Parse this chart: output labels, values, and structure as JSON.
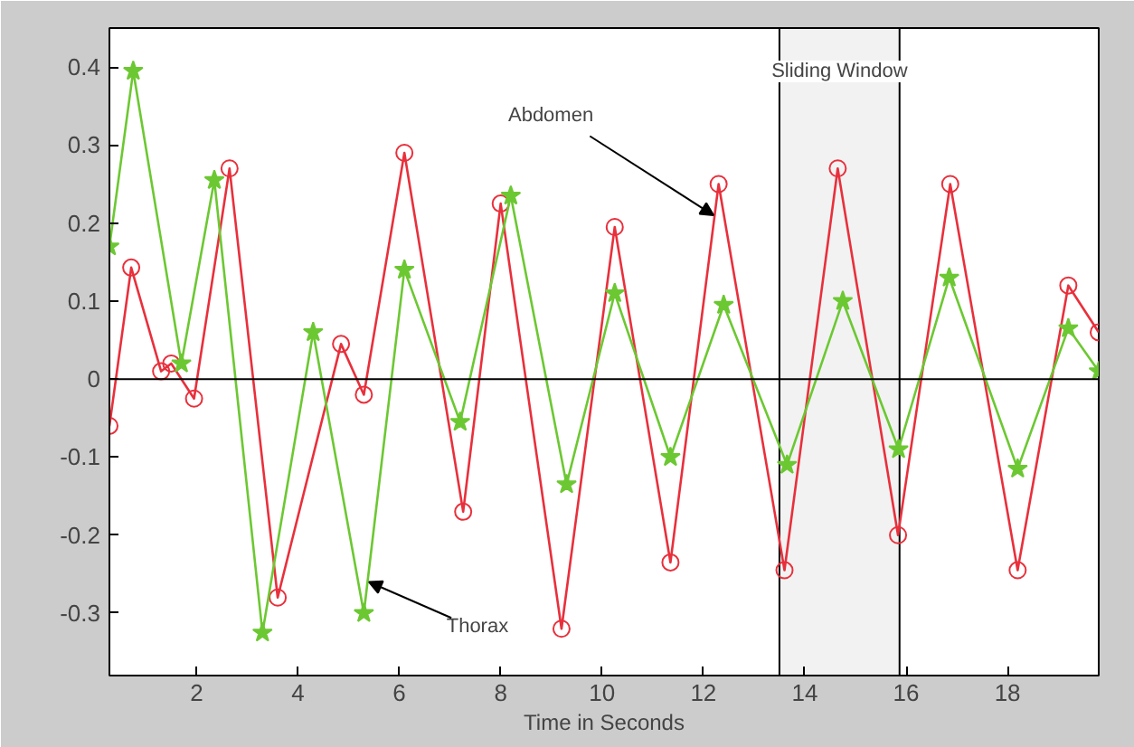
{
  "chart_data": {
    "type": "line",
    "xlabel": "Time in Seconds",
    "x": [
      0.28,
      0.71,
      1.3,
      1.5,
      1.95,
      2.65,
      3.6,
      4.85,
      5.3,
      6.1,
      7.26,
      8.0,
      9.2,
      10.25,
      11.35,
      12.3,
      13.6,
      14.65,
      15.84,
      16.87,
      18.2,
      19.2,
      19.8
    ],
    "series": [
      {
        "color": "#e8303c",
        "marker": "circle",
        "values": [
          -0.06,
          0.143,
          0.01,
          0.02,
          -0.025,
          0.27,
          -0.28,
          0.045,
          -0.02,
          0.29,
          -0.17,
          0.225,
          -0.32,
          0.195,
          -0.235,
          0.25,
          -0.245,
          0.27,
          -0.2,
          0.25,
          -0.245,
          0.12,
          0.06
        ]
      },
      {
        "color": "#6cc832",
        "marker": "star",
        "x": [
          0.28,
          0.75,
          1.7,
          2.35,
          3.3,
          4.3,
          5.3,
          6.1,
          7.2,
          8.2,
          9.3,
          10.25,
          11.35,
          12.4,
          13.65,
          14.75,
          15.85,
          16.85,
          18.2,
          19.2,
          19.8
        ],
        "values": [
          0.17,
          0.395,
          0.02,
          0.255,
          -0.325,
          0.06,
          -0.3,
          0.14,
          -0.055,
          0.235,
          -0.135,
          0.11,
          -0.1,
          0.095,
          -0.11,
          0.1,
          -0.09,
          0.13,
          -0.115,
          0.065,
          0.01
        ]
      }
    ],
    "xlim": [
      0.28,
      19.8
    ],
    "ylim": [
      -0.38,
      0.45
    ],
    "xticks": [
      2,
      4,
      6,
      8,
      10,
      12,
      14,
      16,
      18
    ],
    "yticks": [
      -0.3,
      -0.2,
      -0.1,
      0,
      0.1,
      0.2,
      0.3,
      0.4
    ],
    "ref_lines": [
      {
        "axis": "y",
        "value": 0,
        "color": "#000000"
      }
    ],
    "bands": [
      {
        "axis": "x",
        "from": 13.5,
        "to": 15.87,
        "label": "Sliding Window"
      }
    ],
    "annotations": [
      {
        "text": "Abdomen",
        "x": 12.2,
        "y": 0.21
      },
      {
        "text": "Thorax",
        "x": 5.4,
        "y": -0.26
      }
    ],
    "grid": false
  }
}
